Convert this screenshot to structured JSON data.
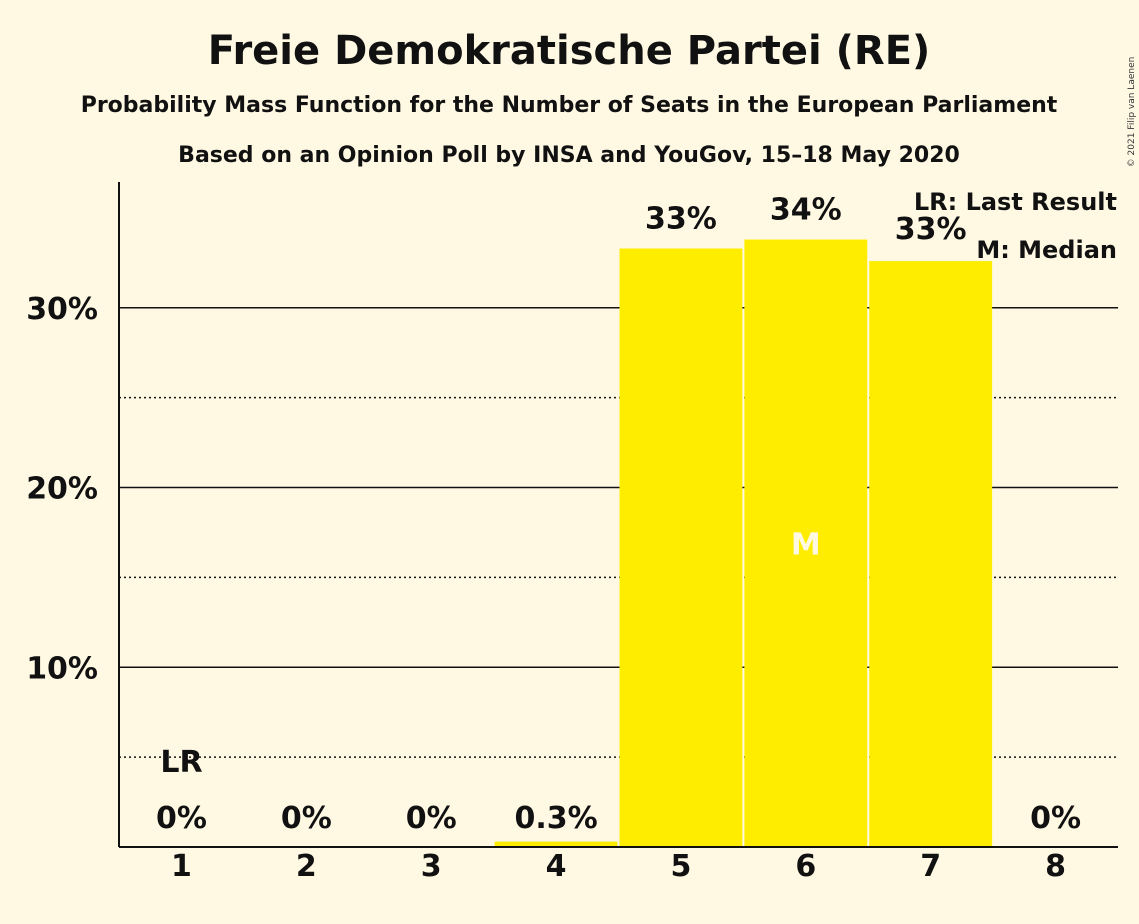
{
  "chart_data": {
    "type": "bar",
    "title": "Freie Demokratische Partei (RE)",
    "subtitle": "Probability Mass Function for the Number of Seats in the European Parliament",
    "subtitle2": "Based on an Opinion Poll by INSA and YouGov, 15–18 May 2020",
    "categories": [
      "1",
      "2",
      "3",
      "4",
      "5",
      "6",
      "7",
      "8"
    ],
    "values": [
      0,
      0,
      0,
      0.3,
      33.3,
      33.8,
      32.6,
      0
    ],
    "value_labels": [
      "0%",
      "0%",
      "0%",
      "0.3%",
      "33%",
      "34%",
      "33%",
      "0%"
    ],
    "ylim": [
      0,
      37
    ],
    "yticks": [
      10,
      20,
      30
    ],
    "ytick_labels": [
      "10%",
      "20%",
      "30%"
    ],
    "minor_gridlines": [
      5,
      15,
      25
    ],
    "bar_color": "#FFED00",
    "last_result_category": "1",
    "last_result_marker": "LR",
    "median_category": "6",
    "median_marker": "M",
    "legend": [
      "LR: Last Result",
      "M: Median"
    ],
    "legend_position": "top-right",
    "copyright": "© 2021 Filip van Laenen"
  }
}
